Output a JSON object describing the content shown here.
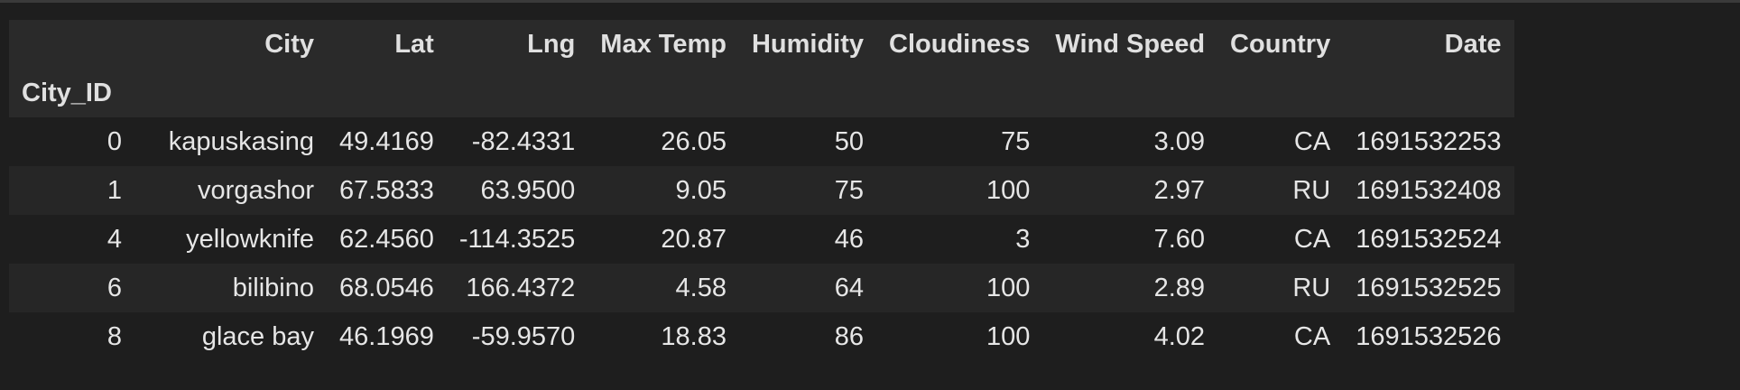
{
  "table": {
    "columns": [
      "City",
      "Lat",
      "Lng",
      "Max Temp",
      "Humidity",
      "Cloudiness",
      "Wind Speed",
      "Country",
      "Date"
    ],
    "index_name": "City_ID",
    "rows": [
      {
        "index": "0",
        "cells": [
          "kapuskasing",
          "49.4169",
          "-82.4331",
          "26.05",
          "50",
          "75",
          "3.09",
          "CA",
          "1691532253"
        ]
      },
      {
        "index": "1",
        "cells": [
          "vorgashor",
          "67.5833",
          "63.9500",
          "9.05",
          "75",
          "100",
          "2.97",
          "RU",
          "1691532408"
        ]
      },
      {
        "index": "4",
        "cells": [
          "yellowknife",
          "62.4560",
          "-114.3525",
          "20.87",
          "46",
          "3",
          "7.60",
          "CA",
          "1691532524"
        ]
      },
      {
        "index": "6",
        "cells": [
          "bilibino",
          "68.0546",
          "166.4372",
          "4.58",
          "64",
          "100",
          "2.89",
          "RU",
          "1691532525"
        ]
      },
      {
        "index": "8",
        "cells": [
          "glace bay",
          "46.1969",
          "-59.9570",
          "18.83",
          "86",
          "100",
          "4.02",
          "CA",
          "1691532526"
        ]
      }
    ]
  }
}
